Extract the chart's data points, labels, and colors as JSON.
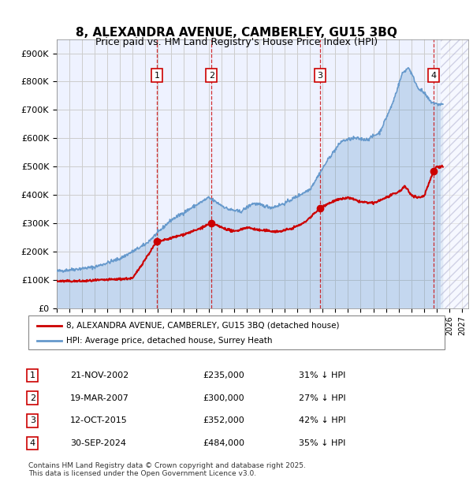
{
  "title": "8, ALEXANDRA AVENUE, CAMBERLEY, GU15 3BQ",
  "subtitle": "Price paid vs. HM Land Registry's House Price Index (HPI)",
  "ylabel_ticks": [
    "£0",
    "£100K",
    "£200K",
    "£300K",
    "£400K",
    "£500K",
    "£600K",
    "£700K",
    "£800K",
    "£900K"
  ],
  "ylim": [
    0,
    950000
  ],
  "xlim_start": 1995.0,
  "xlim_end": 2027.5,
  "sale_dates": [
    2002.9,
    2007.22,
    2015.79,
    2024.75
  ],
  "sale_prices": [
    235000,
    300000,
    352000,
    484000
  ],
  "sale_labels": [
    "1",
    "2",
    "3",
    "4"
  ],
  "legend_entries": [
    "8, ALEXANDRA AVENUE, CAMBERLEY, GU15 3BQ (detached house)",
    "HPI: Average price, detached house, Surrey Heath"
  ],
  "table_rows": [
    {
      "label": "1",
      "date": "21-NOV-2002",
      "price": "£235,000",
      "hpi": "31% ↓ HPI"
    },
    {
      "label": "2",
      "date": "19-MAR-2007",
      "price": "£300,000",
      "hpi": "27% ↓ HPI"
    },
    {
      "label": "3",
      "date": "12-OCT-2015",
      "price": "£352,000",
      "hpi": "42% ↓ HPI"
    },
    {
      "label": "4",
      "date": "30-SEP-2024",
      "price": "£484,000",
      "hpi": "35% ↓ HPI"
    }
  ],
  "footnote": "Contains HM Land Registry data © Crown copyright and database right 2025.\nThis data is licensed under the Open Government Licence v3.0.",
  "red_color": "#cc0000",
  "blue_color": "#6699cc",
  "blue_fill": "#ddeeff",
  "background_color": "#f0f4ff",
  "plot_bg": "#eef2ff"
}
